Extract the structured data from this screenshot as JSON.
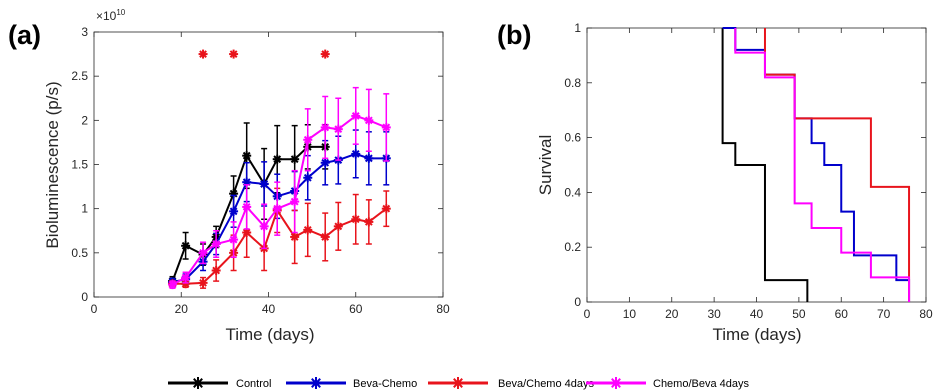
{
  "colors": {
    "Control": "#000000",
    "Beva-Chemo": "#0000cc",
    "Beva/Chemo 4days": "#e8141c",
    "Chemo/Beva 4days": "#ff00ff"
  },
  "legend": [
    "Control",
    "Beva-Chemo",
    "Beva/Chemo 4days",
    "Chemo/Beva 4days"
  ],
  "chart_data": [
    {
      "type": "line",
      "panel_label": "(a)",
      "xlabel": "Time (days)",
      "ylabel": "Bioluminescence (p/s)",
      "y_multiplier": "×10",
      "y_multiplier_exp": "10",
      "xlim": [
        0,
        80
      ],
      "ylim": [
        0,
        3
      ],
      "xticks": [
        0,
        20,
        40,
        60,
        80
      ],
      "yticks": [
        0,
        0.5,
        1,
        1.5,
        2,
        2.5,
        3
      ],
      "ytick_labels": [
        "0",
        "0.5",
        "1",
        "1.5",
        "2",
        "2.5",
        "3"
      ],
      "grid": false,
      "significance_markers": [
        {
          "x": 25,
          "y": 2.75
        },
        {
          "x": 32,
          "y": 2.75
        },
        {
          "x": 53,
          "y": 2.75
        }
      ],
      "series": [
        {
          "name": "Control",
          "x": [
            18,
            21,
            25,
            28,
            32,
            35,
            39,
            42,
            46,
            49,
            53
          ],
          "y": [
            0.18,
            0.58,
            0.48,
            0.68,
            1.17,
            1.6,
            1.28,
            1.56,
            1.56,
            1.7,
            1.7
          ],
          "err": [
            0.05,
            0.15,
            0.12,
            0.12,
            0.2,
            0.37,
            0.4,
            0.38,
            0.38,
            0.25,
            0.25
          ]
        },
        {
          "name": "Beva-Chemo",
          "x": [
            18,
            21,
            25,
            28,
            32,
            35,
            39,
            42,
            46,
            49,
            53,
            56,
            60,
            63,
            67
          ],
          "y": [
            0.17,
            0.2,
            0.4,
            0.6,
            0.97,
            1.3,
            1.28,
            1.14,
            1.2,
            1.35,
            1.52,
            1.55,
            1.62,
            1.57,
            1.57
          ],
          "err": [
            0.04,
            0.06,
            0.1,
            0.12,
            0.18,
            0.22,
            0.25,
            0.25,
            0.22,
            0.25,
            0.25,
            0.27,
            0.27,
            0.3,
            0.3
          ]
        },
        {
          "name": "Beva/Chemo 4days",
          "x": [
            18,
            21,
            25,
            28,
            32,
            35,
            39,
            42,
            46,
            49,
            53,
            56,
            60,
            63,
            67
          ],
          "y": [
            0.15,
            0.15,
            0.16,
            0.3,
            0.5,
            0.73,
            0.55,
            0.98,
            0.68,
            0.76,
            0.68,
            0.8,
            0.88,
            0.85,
            1.0
          ],
          "err": [
            0.03,
            0.04,
            0.06,
            0.12,
            0.2,
            0.28,
            0.25,
            0.25,
            0.3,
            0.3,
            0.27,
            0.27,
            0.28,
            0.25,
            0.2
          ]
        },
        {
          "name": "Chemo/Beva 4days",
          "x": [
            18,
            21,
            25,
            28,
            32,
            35,
            39,
            42,
            46,
            49,
            53,
            56,
            60,
            63,
            67
          ],
          "y": [
            0.14,
            0.22,
            0.5,
            0.6,
            0.65,
            1.02,
            0.8,
            1.0,
            1.08,
            1.78,
            1.92,
            1.9,
            2.05,
            2.0,
            1.92
          ],
          "err": [
            0.04,
            0.06,
            0.12,
            0.15,
            0.2,
            0.25,
            0.25,
            0.3,
            0.35,
            0.35,
            0.35,
            0.35,
            0.32,
            0.35,
            0.38
          ]
        }
      ]
    },
    {
      "type": "line",
      "panel_label": "(b)",
      "xlabel": "Time (days)",
      "ylabel": "Survival",
      "xlim": [
        0,
        80
      ],
      "ylim": [
        0,
        1
      ],
      "xticks": [
        0,
        10,
        20,
        30,
        40,
        50,
        60,
        70,
        80
      ],
      "yticks": [
        0,
        0.2,
        0.4,
        0.6,
        0.8,
        1
      ],
      "ytick_labels": [
        "0",
        "0.2",
        "0.4",
        "0.6",
        "0.8",
        "1"
      ],
      "grid": false,
      "series": [
        {
          "name": "Control",
          "step_x": [
            32,
            32,
            35,
            35,
            42,
            42,
            52,
            52
          ],
          "step_y": [
            1,
            0.58,
            0.58,
            0.5,
            0.5,
            0.08,
            0.08,
            0
          ]
        },
        {
          "name": "Beva-Chemo",
          "step_x": [
            32,
            35,
            35,
            42,
            42,
            47,
            47,
            49,
            49,
            53,
            53,
            56,
            56,
            60,
            60,
            63,
            63,
            73,
            73,
            76,
            76
          ],
          "step_y": [
            1,
            1,
            0.92,
            0.92,
            0.83,
            0.83,
            0.83,
            0.83,
            0.67,
            0.67,
            0.58,
            0.58,
            0.5,
            0.5,
            0.33,
            0.33,
            0.17,
            0.17,
            0.08,
            0.08,
            0
          ]
        },
        {
          "name": "Beva/Chemo 4days",
          "step_x": [
            42,
            42,
            49,
            49,
            67,
            67,
            76,
            76
          ],
          "step_y": [
            1,
            0.83,
            0.83,
            0.67,
            0.67,
            0.42,
            0.42,
            0
          ]
        },
        {
          "name": "Chemo/Beva 4days",
          "step_x": [
            35,
            35,
            42,
            42,
            49,
            49,
            53,
            53,
            60,
            60,
            67,
            67,
            76,
            76
          ],
          "step_y": [
            1,
            0.91,
            0.91,
            0.82,
            0.82,
            0.36,
            0.36,
            0.27,
            0.27,
            0.18,
            0.18,
            0.09,
            0.09,
            0
          ]
        }
      ]
    }
  ]
}
